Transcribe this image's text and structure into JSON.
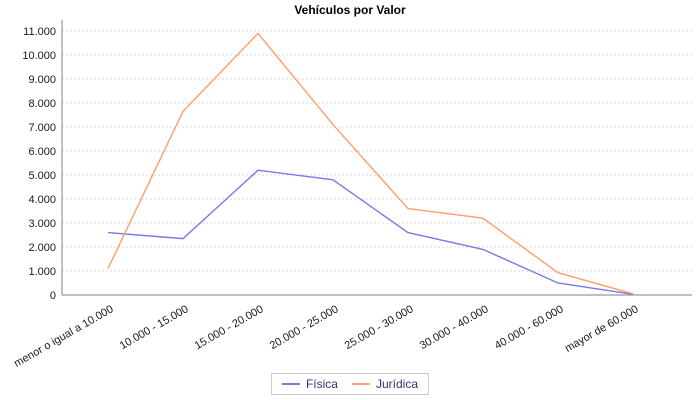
{
  "chart_data": {
    "type": "line",
    "title": "Vehículos por Valor",
    "categories": [
      "menor o igual a 10.000",
      "10.000 - 15.000",
      "15.000 - 20.000",
      "20.000 - 25.000",
      "25.000 - 30.000",
      "30.000 - 40.000",
      "40.000 - 60.000",
      "mayor de 60.000"
    ],
    "series": [
      {
        "name": "Física",
        "color": "#7979e8",
        "values": [
          2600,
          2350,
          5200,
          4800,
          2600,
          1900,
          500,
          30
        ]
      },
      {
        "name": "Jurídica",
        "color": "#ff9d6e",
        "values": [
          1100,
          7650,
          10900,
          7100,
          3600,
          3200,
          930,
          50
        ]
      }
    ],
    "xlabel": "",
    "ylabel": "",
    "ylim": [
      0,
      11000
    ],
    "ytick_step": 1000,
    "ytick_labels": [
      "0",
      "1.000",
      "2.000",
      "3.000",
      "4.000",
      "5.000",
      "6.000",
      "7.000",
      "8.000",
      "9.000",
      "10.000",
      "11.000"
    ],
    "grid": true,
    "legend_position": "bottom",
    "colors": {
      "gridline": "#d8d8d8",
      "axis": "#808080",
      "tick_label": "#1a1a1a",
      "legend_text": "#3b3270",
      "title_text": "#000000"
    }
  }
}
